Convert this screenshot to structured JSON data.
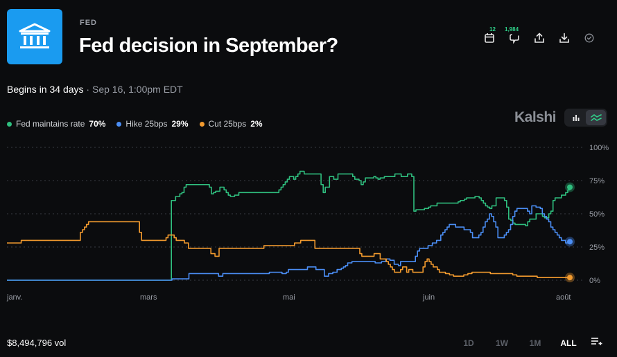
{
  "header": {
    "category": "FED",
    "title": "Fed decision in September?",
    "logo_icon": "bank-building-icon",
    "actions": [
      {
        "name": "calendar",
        "icon": "calendar-icon",
        "badge": "12"
      },
      {
        "name": "comments",
        "icon": "comment-icon",
        "badge": "1,984"
      },
      {
        "name": "share",
        "icon": "share-icon",
        "badge": ""
      },
      {
        "name": "download",
        "icon": "download-icon",
        "badge": ""
      },
      {
        "name": "check",
        "icon": "check-circle-icon",
        "badge": ""
      }
    ]
  },
  "schedule": {
    "begins": "Begins in 34 days",
    "separator": " · ",
    "datetime": "Sep 16, 1:00pm EDT"
  },
  "legend": [
    {
      "label": "Fed maintains rate",
      "pct": "70%",
      "color": "#2fbf7f"
    },
    {
      "label": "Hike 25bps",
      "pct": "29%",
      "color": "#4b8ef5"
    },
    {
      "label": "Cut 25bps",
      "pct": "2%",
      "color": "#f29a2e"
    }
  ],
  "brand": "Kalshi",
  "view_toggle": {
    "options": [
      "bar-chart-icon",
      "line-chart-icon"
    ],
    "active": 1
  },
  "chart_data": {
    "type": "line",
    "x_labels": [
      "janv.",
      "mars",
      "mai",
      "juin",
      "août"
    ],
    "y_ticks": [
      "100%",
      "75%",
      "50%",
      "25%",
      "0%"
    ],
    "ylim": [
      0,
      100
    ],
    "grid": true,
    "series": [
      {
        "name": "Fed maintains rate",
        "color": "#2fbf7f",
        "values": [
          0,
          0,
          0,
          0,
          0,
          0,
          0,
          0,
          0,
          0,
          0,
          0,
          0,
          0,
          0,
          0,
          0,
          0,
          0,
          0,
          0,
          0,
          0,
          0,
          0,
          0,
          0,
          0,
          0,
          0,
          0,
          0,
          0,
          0,
          0,
          0,
          0,
          0,
          0,
          0,
          0,
          0,
          0,
          0,
          0,
          0,
          0,
          0,
          0,
          0,
          0,
          0,
          0,
          0,
          0,
          0,
          0,
          0,
          0,
          0,
          0,
          0,
          0,
          0,
          0,
          0,
          0,
          0,
          0,
          0,
          0,
          0,
          0,
          0,
          0,
          0,
          0,
          0,
          60,
          60,
          63,
          63,
          65,
          66,
          70,
          72,
          72,
          72,
          72,
          72,
          72,
          72,
          72,
          72,
          72,
          72,
          70,
          65,
          66,
          67,
          67,
          70,
          70,
          68,
          66,
          64,
          63,
          63,
          64,
          64,
          66,
          66,
          66,
          66,
          66,
          66,
          66,
          66,
          66,
          66,
          66,
          66,
          66,
          66,
          66,
          66,
          66,
          66,
          66,
          68,
          70,
          72,
          74,
          76,
          78,
          78,
          76,
          78,
          80,
          82,
          82,
          80,
          80,
          80,
          80,
          80,
          80,
          80,
          80,
          72,
          66,
          70,
          70,
          78,
          78,
          76,
          76,
          80,
          80,
          80,
          80,
          80,
          80,
          80,
          78,
          76,
          76,
          75,
          72,
          74,
          77,
          77,
          77,
          77,
          78,
          77,
          76,
          77,
          77,
          78,
          78,
          78,
          78,
          78,
          80,
          80,
          80,
          78,
          78,
          78,
          80,
          80,
          78,
          52,
          53,
          53,
          53,
          53,
          54,
          54,
          55,
          56,
          56,
          56,
          58,
          58,
          58,
          58,
          58,
          58,
          58,
          58,
          58,
          58,
          59,
          60,
          60,
          61,
          62,
          62,
          62,
          62,
          63,
          63,
          62,
          60,
          58,
          56,
          55,
          54,
          56,
          56,
          62,
          62,
          62,
          62,
          60,
          55,
          46,
          45,
          43,
          42,
          42,
          42,
          42,
          42,
          41,
          44,
          46,
          46,
          46,
          50,
          50,
          50,
          48,
          47,
          47,
          50,
          52,
          60,
          62,
          62,
          62,
          64,
          64,
          66,
          68,
          70
        ],
        "last": "70%"
      },
      {
        "name": "Hike 25bps",
        "color": "#4b8ef5",
        "values": [
          0,
          0,
          0,
          0,
          0,
          0,
          0,
          0,
          0,
          0,
          0,
          0,
          0,
          0,
          0,
          0,
          0,
          0,
          0,
          0,
          0,
          0,
          0,
          0,
          0,
          0,
          0,
          0,
          0,
          0,
          0,
          0,
          0,
          0,
          0,
          0,
          0,
          0,
          0,
          0,
          0,
          0,
          0,
          0,
          0,
          0,
          0,
          0,
          0,
          0,
          0,
          0,
          0,
          0,
          0,
          0,
          0,
          0,
          0,
          0,
          0,
          0,
          0,
          0,
          0,
          0,
          0,
          0,
          0,
          0,
          0,
          0,
          0,
          0,
          0,
          0,
          0,
          0,
          1,
          1,
          1,
          1,
          1,
          1,
          1,
          1,
          5,
          5,
          5,
          5,
          5,
          5,
          5,
          5,
          5,
          5,
          5,
          5,
          5,
          5,
          3,
          3,
          5,
          5,
          5,
          5,
          5,
          5,
          5,
          5,
          5,
          5,
          5,
          5,
          5,
          5,
          5,
          5,
          5,
          5,
          5,
          5,
          5,
          5,
          6,
          6,
          6,
          6,
          6,
          6,
          5,
          5,
          6,
          8,
          8,
          8,
          8,
          8,
          8,
          8,
          8,
          8,
          10,
          10,
          10,
          10,
          8,
          8,
          8,
          8,
          3,
          3,
          5,
          5,
          6,
          6,
          8,
          8,
          9,
          10,
          11,
          13,
          13,
          14,
          14,
          14,
          14,
          14,
          14,
          14,
          14,
          14,
          14,
          14,
          13,
          13,
          13,
          14,
          14,
          16,
          16,
          15,
          15,
          12,
          12,
          11,
          14,
          14,
          14,
          14,
          14,
          14,
          14,
          18,
          22,
          24,
          24,
          24,
          24,
          26,
          26,
          28,
          28,
          30,
          30,
          34,
          36,
          38,
          40,
          42,
          42,
          42,
          40,
          40,
          40,
          40,
          38,
          38,
          38,
          36,
          32,
          32,
          32,
          34,
          36,
          40,
          44,
          46,
          50,
          48,
          44,
          40,
          32,
          32,
          32,
          34,
          36,
          38,
          42,
          48,
          52,
          54,
          54,
          54,
          54,
          54,
          52,
          50,
          56,
          56,
          55,
          55,
          54,
          50,
          48,
          46,
          44,
          40,
          38,
          36,
          34,
          32,
          30,
          30,
          28,
          28,
          29
        ],
        "last": "29%"
      },
      {
        "name": "Cut 25bps",
        "color": "#f29a2e",
        "values": [
          28,
          28,
          28,
          28,
          28,
          28,
          28,
          30,
          30,
          30,
          30,
          30,
          30,
          30,
          30,
          30,
          30,
          30,
          30,
          30,
          30,
          30,
          30,
          30,
          30,
          30,
          30,
          30,
          30,
          30,
          30,
          30,
          30,
          30,
          30,
          30,
          36,
          38,
          40,
          42,
          44,
          44,
          44,
          44,
          44,
          44,
          44,
          44,
          44,
          44,
          44,
          44,
          44,
          44,
          44,
          44,
          44,
          44,
          44,
          44,
          44,
          44,
          44,
          44,
          44,
          36,
          30,
          30,
          30,
          30,
          30,
          30,
          30,
          30,
          30,
          30,
          30,
          30,
          32,
          34,
          34,
          34,
          32,
          30,
          30,
          30,
          30,
          28,
          28,
          24,
          24,
          24,
          24,
          24,
          24,
          24,
          24,
          24,
          24,
          24,
          20,
          20,
          18,
          18,
          24,
          24,
          24,
          24,
          24,
          24,
          24,
          24,
          24,
          24,
          24,
          24,
          24,
          24,
          24,
          24,
          24,
          24,
          24,
          24,
          24,
          24,
          26,
          26,
          26,
          26,
          26,
          26,
          26,
          26,
          26,
          26,
          26,
          26,
          26,
          26,
          26,
          28,
          28,
          28,
          30,
          30,
          30,
          30,
          30,
          30,
          30,
          24,
          24,
          24,
          24,
          24,
          24,
          24,
          24,
          24,
          24,
          24,
          24,
          24,
          24,
          24,
          24,
          24,
          24,
          24,
          24,
          24,
          24,
          20,
          18,
          18,
          18,
          18,
          18,
          18,
          20,
          20,
          20,
          16,
          16,
          16,
          14,
          12,
          10,
          8,
          6,
          6,
          6,
          8,
          10,
          10,
          6,
          8,
          8,
          6,
          6,
          6,
          6,
          6,
          10,
          14,
          16,
          14,
          12,
          10,
          10,
          8,
          6,
          6,
          6,
          5,
          5,
          4,
          4,
          3,
          3,
          3,
          3,
          3,
          4,
          4,
          5,
          5,
          6,
          6,
          6,
          6,
          6,
          6,
          6,
          6,
          6,
          5,
          5,
          5,
          5,
          5,
          5,
          5,
          5,
          5,
          5,
          5,
          4,
          4,
          3,
          3,
          3,
          3,
          3,
          3,
          3,
          3,
          3,
          3,
          2,
          2,
          2,
          2,
          2,
          2,
          2,
          2,
          2,
          2,
          2,
          2,
          2,
          2,
          2,
          2,
          2
        ],
        "last": "2%"
      }
    ]
  },
  "footer": {
    "volume": "$8,494,796 vol",
    "ranges": [
      "1D",
      "1W",
      "1M",
      "ALL"
    ],
    "active_range": "ALL"
  }
}
